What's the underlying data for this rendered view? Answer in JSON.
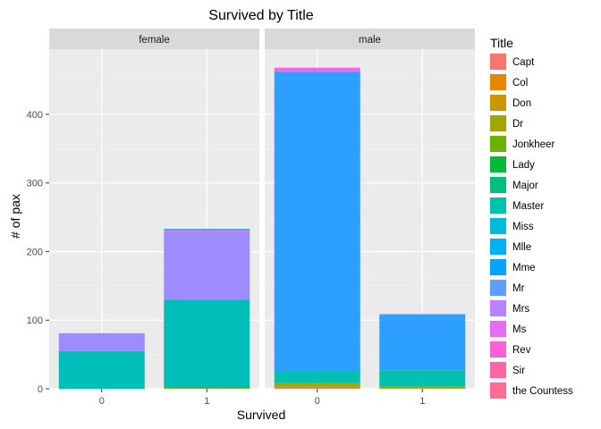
{
  "chart_data": {
    "type": "bar",
    "stacked": true,
    "title": "Survived by Title",
    "xlabel": "Survived",
    "ylabel": "# of pax",
    "ylim": [
      0,
      495
    ],
    "yticks": [
      0,
      100,
      200,
      300,
      400
    ],
    "categories": [
      "0",
      "1"
    ],
    "grid": true,
    "legend_position": "right",
    "legend_title": "Title",
    "legend": [
      {
        "name": "Capt",
        "color": "#F8766D"
      },
      {
        "name": "Col",
        "color": "#E58700"
      },
      {
        "name": "Don",
        "color": "#C99800"
      },
      {
        "name": "Dr",
        "color": "#A3A500"
      },
      {
        "name": "Jonkheer",
        "color": "#6BB100"
      },
      {
        "name": "Lady",
        "color": "#00BA38"
      },
      {
        "name": "Major",
        "color": "#00BF7D"
      },
      {
        "name": "Master",
        "color": "#00C0AF"
      },
      {
        "name": "Miss",
        "color": "#00BCD8"
      },
      {
        "name": "Mlle",
        "color": "#00B0F6"
      },
      {
        "name": "Mme",
        "color": "#00A5FF"
      },
      {
        "name": "Mr",
        "color": "#619CFF"
      },
      {
        "name": "Mrs",
        "color": "#B983FF"
      },
      {
        "name": "Ms",
        "color": "#E76BF3"
      },
      {
        "name": "Rev",
        "color": "#FD61D1"
      },
      {
        "name": "Sir",
        "color": "#FF67A4"
      },
      {
        "name": "the Countess",
        "color": "#FF6C91"
      }
    ],
    "panels": [
      {
        "label": "female",
        "bars": [
          {
            "category": "0",
            "segments": [
              {
                "title": "Miss",
                "value": 55,
                "color": "#00BFB8"
              },
              {
                "title": "Mrs",
                "value": 26,
                "color": "#9C8CFF"
              }
            ]
          },
          {
            "category": "1",
            "segments": [
              {
                "title": "Dr",
                "value": 1,
                "color": "#A3A500"
              },
              {
                "title": "Lady",
                "value": 1,
                "color": "#00BA38"
              },
              {
                "title": "Miss",
                "value": 127,
                "color": "#00BFB8"
              },
              {
                "title": "Mme",
                "value": 1,
                "color": "#00A5FF"
              },
              {
                "title": "Mrs",
                "value": 99,
                "color": "#9C8CFF"
              },
              {
                "title": "Ms",
                "value": 1,
                "color": "#E76BF3"
              },
              {
                "title": "the Countess",
                "value": 1,
                "color": "#FF6C91"
              },
              {
                "title": "Mlle",
                "value": 2,
                "color": "#00B0F6"
              }
            ]
          }
        ]
      },
      {
        "label": "male",
        "bars": [
          {
            "category": "0",
            "segments": [
              {
                "title": "Capt",
                "value": 1,
                "color": "#F8766D"
              },
              {
                "title": "Col",
                "value": 1,
                "color": "#E58700"
              },
              {
                "title": "Don",
                "value": 1,
                "color": "#C99800"
              },
              {
                "title": "Dr",
                "value": 4,
                "color": "#A3A500"
              },
              {
                "title": "Jonkheer",
                "value": 1,
                "color": "#6BB100"
              },
              {
                "title": "Major",
                "value": 1,
                "color": "#00BF7D"
              },
              {
                "title": "Master",
                "value": 17,
                "color": "#00C0AF"
              },
              {
                "title": "Mr",
                "value": 436,
                "color": "#2C9FFF"
              },
              {
                "title": "Rev",
                "value": 6,
                "color": "#F265E8"
              }
            ]
          },
          {
            "category": "1",
            "segments": [
              {
                "title": "Col",
                "value": 1,
                "color": "#E58700"
              },
              {
                "title": "Dr",
                "value": 2,
                "color": "#A3A500"
              },
              {
                "title": "Major",
                "value": 1,
                "color": "#00BF7D"
              },
              {
                "title": "Master",
                "value": 23,
                "color": "#00C0AF"
              },
              {
                "title": "Mr",
                "value": 81,
                "color": "#2C9FFF"
              },
              {
                "title": "Sir",
                "value": 1,
                "color": "#FF67A4"
              }
            ]
          }
        ]
      }
    ]
  }
}
